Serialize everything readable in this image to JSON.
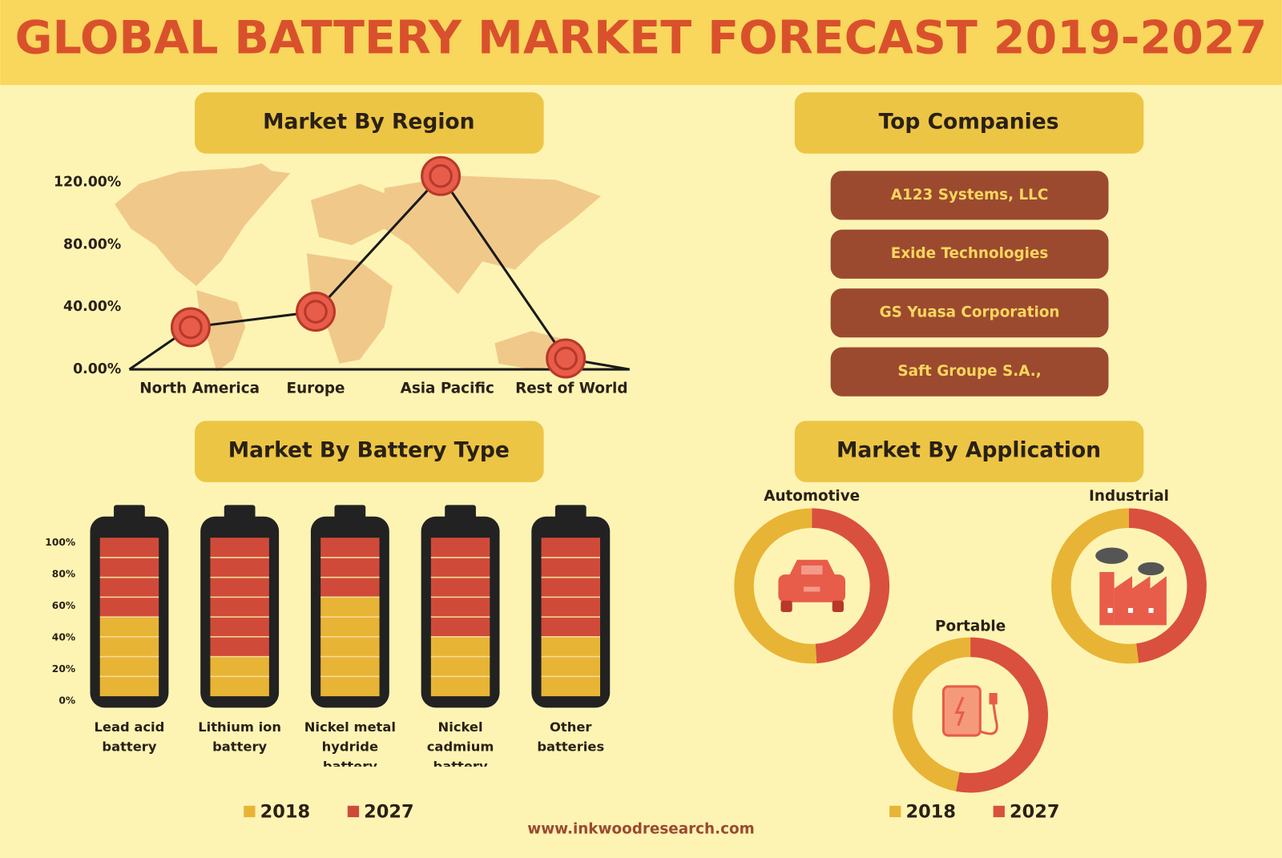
{
  "title": "GLOBAL BATTERY MARKET FORECAST 2019-2027",
  "companies": {
    "title": "Top Companies",
    "items": [
      "A123 Systems, LLC",
      "Exide Technologies",
      "GS Yuasa Corporation",
      "Saft Groupe S.A.,"
    ]
  },
  "website": "www.inkwoodresearch.com",
  "chart_data": [
    {
      "type": "line",
      "title": "Market By Region",
      "categories": [
        "North America",
        "Europe",
        "Asia Pacific",
        "Rest of World"
      ],
      "values": [
        27,
        37,
        124,
        7
      ],
      "color": "#1a1a1a",
      "marker_color": "#e85c4a",
      "ylim": [
        0,
        130
      ],
      "yticks": [
        {
          "value": 0,
          "label": "0.00%"
        },
        {
          "value": 40,
          "label": "40.00%"
        },
        {
          "value": 80,
          "label": "80.00%"
        },
        {
          "value": 120,
          "label": "120.00%"
        }
      ]
    },
    {
      "type": "stacked_bar",
      "title": "Market By Battery Type",
      "categories": [
        "Lead acid battery",
        "Lithium ion battery",
        "Nickel metal hydride battery",
        "Nickel cadmium battery",
        "Other batteries"
      ],
      "series": [
        {
          "name": "2018",
          "color": "#e8b435",
          "values": [
            50,
            25,
            63,
            38,
            38
          ]
        },
        {
          "name": "2027",
          "color": "#d04a3a",
          "values": [
            50,
            75,
            37,
            62,
            62
          ]
        }
      ],
      "ylim": [
        0,
        100
      ],
      "yticks": [
        {
          "value": 0,
          "label": "0%"
        },
        {
          "value": 20,
          "label": "20%"
        },
        {
          "value": 40,
          "label": "40%"
        },
        {
          "value": 60,
          "label": "60%"
        },
        {
          "value": 80,
          "label": "80%"
        },
        {
          "value": 100,
          "label": "100%"
        }
      ]
    },
    {
      "type": "donut",
      "title": "Market By Application",
      "categories": [
        "Automotive",
        "Industrial",
        "Portable"
      ],
      "series": [
        {
          "name": "2018",
          "color": "#e8b435",
          "values": [
            51,
            52,
            47
          ]
        },
        {
          "name": "2027",
          "color": "#d9503e",
          "values": [
            49,
            48,
            53
          ]
        }
      ]
    }
  ]
}
